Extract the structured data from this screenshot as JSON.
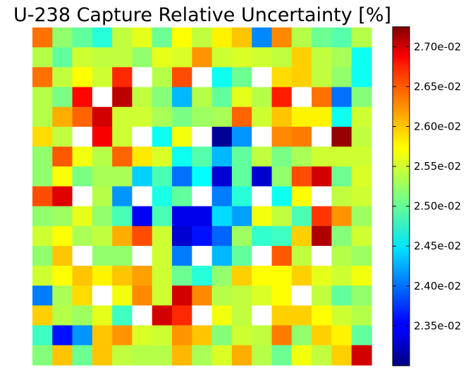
{
  "chart_data": {
    "type": "heatmap",
    "title": "U-238 Capture Relative Uncertainty [%]",
    "xlabel": "",
    "ylabel": "",
    "grid": false,
    "legend": "colorbar-right",
    "colormap": "jet",
    "rows": 17,
    "cols": 17,
    "clim": [
      0.023,
      0.02725
    ],
    "colorbar_ticks": [
      0.0235,
      0.024,
      0.0245,
      0.025,
      0.0255,
      0.026,
      0.0265,
      0.027
    ],
    "colorbar_tick_labels": [
      "2.35e-02",
      "2.40e-02",
      "2.45e-02",
      "2.50e-02",
      "2.55e-02",
      "2.60e-02",
      "2.65e-02",
      "2.70e-02"
    ],
    "values": [
      [
        0.02625,
        0.0252,
        0.025,
        0.02475,
        0.0254,
        0.02555,
        0.02505,
        0.02565,
        0.0254,
        0.0257,
        0.0259,
        0.0241,
        0.02615,
        0.02535,
        0.02505,
        0.02495,
        0.02535
      ],
      [
        0.02535,
        0.025,
        0.02545,
        0.0254,
        0.0254,
        0.0252,
        0.02555,
        0.0255,
        0.0261,
        0.02545,
        0.0255,
        0.02545,
        0.0254,
        0.02585,
        0.0254,
        0.0253,
        0.02465
      ],
      [
        0.02625,
        0.0254,
        0.02565,
        0.02545,
        0.02655,
        null,
        0.02535,
        0.0264,
        null,
        0.02465,
        0.02505,
        null,
        0.0258,
        0.02585,
        0.0254,
        0.0252,
        0.02465
      ],
      [
        0.02535,
        0.0251,
        0.0267,
        null,
        0.027,
        0.0254,
        0.02515,
        0.0243,
        0.02535,
        0.025,
        0.02555,
        0.02535,
        0.0266,
        null,
        0.02625,
        0.024,
        0.02515
      ],
      [
        0.02535,
        0.026,
        0.0263,
        0.0269,
        0.02545,
        0.02545,
        0.0253,
        0.0251,
        0.02525,
        0.0253,
        0.0263,
        0.02545,
        0.0259,
        0.0257,
        0.0257,
        0.02465,
        0.02545
      ],
      [
        0.0258,
        0.0254,
        null,
        0.02675,
        0.02545,
        null,
        0.02465,
        0.0256,
        null,
        0.0231,
        0.02415,
        null,
        0.02615,
        0.0262,
        null,
        0.02715,
        0.0254
      ],
      [
        0.0252,
        0.02635,
        0.0256,
        0.02535,
        0.0263,
        0.02575,
        0.0255,
        0.02465,
        0.02495,
        0.0243,
        0.025,
        0.0254,
        0.0251,
        0.0253,
        0.02545,
        0.02545,
        0.02545
      ],
      [
        0.0252,
        0.02565,
        0.0251,
        0.0253,
        0.0253,
        0.0244,
        0.0249,
        0.024,
        0.0246,
        0.02335,
        0.025,
        0.02335,
        0.0252,
        0.0264,
        0.0269,
        0.02505,
        0.0255
      ],
      [
        0.0264,
        0.02685,
        null,
        0.02535,
        0.02415,
        null,
        0.0247,
        0.025,
        null,
        0.02405,
        0.02475,
        null,
        0.02465,
        0.02565,
        null,
        0.0254,
        0.02545
      ],
      [
        0.0252,
        0.02525,
        0.02555,
        0.0252,
        0.0249,
        0.0235,
        0.0249,
        0.02345,
        0.02345,
        0.02445,
        0.0242,
        0.0256,
        0.0254,
        0.0249,
        0.0265,
        0.0261,
        0.02525
      ],
      [
        0.02545,
        0.02565,
        0.0253,
        0.0254,
        0.026,
        0.0264,
        0.02545,
        0.02335,
        0.0236,
        0.02395,
        0.02525,
        0.0248,
        0.02485,
        0.02585,
        0.02705,
        0.02515,
        0.02545
      ],
      [
        0.0252,
        0.0259,
        null,
        0.0252,
        0.0252,
        null,
        0.02545,
        0.02405,
        null,
        0.0243,
        0.025,
        null,
        0.02635,
        0.0254,
        null,
        0.02535,
        0.02525
      ],
      [
        0.02545,
        0.02565,
        0.0259,
        0.0257,
        0.0259,
        0.02605,
        0.02545,
        0.02505,
        0.02475,
        0.0252,
        0.02585,
        0.02565,
        0.02565,
        0.02585,
        0.02555,
        0.02545,
        0.0256
      ],
      [
        0.02405,
        0.0253,
        0.0258,
        null,
        0.0256,
        0.02615,
        0.02545,
        0.0269,
        0.02615,
        0.02535,
        0.0254,
        0.0255,
        0.02565,
        null,
        0.0254,
        0.025,
        0.0252
      ],
      [
        0.02585,
        0.02535,
        0.02525,
        0.02555,
        0.02485,
        null,
        0.0269,
        0.02655,
        null,
        0.0256,
        0.0254,
        null,
        0.02585,
        0.02585,
        0.02565,
        0.02545,
        0.02535
      ],
      [
        0.02485,
        0.0236,
        0.02415,
        0.0259,
        0.0261,
        0.0255,
        0.02545,
        0.0261,
        0.0259,
        0.02515,
        0.02545,
        0.0254,
        0.0262,
        0.0252,
        0.02585,
        0.0257,
        0.025
      ],
      [
        0.02515,
        0.0259,
        0.02505,
        0.0259,
        0.0254,
        0.02535,
        0.02535,
        0.02595,
        0.0253,
        0.0255,
        0.026,
        0.02535,
        0.02505,
        0.0256,
        0.0254,
        0.02585,
        0.0269
      ]
    ]
  }
}
